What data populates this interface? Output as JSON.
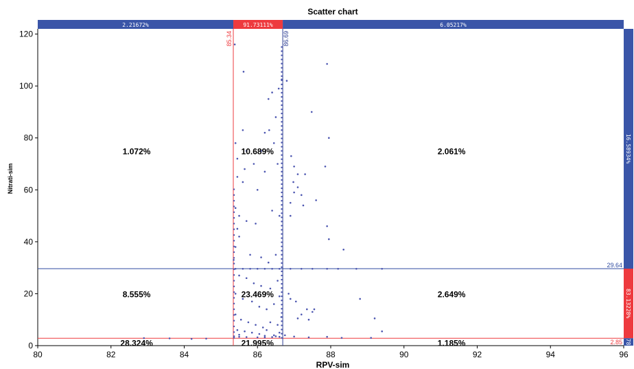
{
  "chart_data": {
    "type": "scatter",
    "title": "Scatter chart",
    "xlabel": "RPV-sim",
    "ylabel": "Nitrati-sim",
    "xlim": [
      80,
      96
    ],
    "ylim": [
      0,
      122
    ],
    "xticks": [
      "80",
      "82",
      "84",
      "86",
      "88",
      "90",
      "92",
      "94",
      "96"
    ],
    "yticks": [
      "0",
      "20",
      "40",
      "60",
      "80",
      "100",
      "120"
    ],
    "colors": {
      "points": "#4b55b0",
      "blue": "#3a55a8",
      "red": "#ee3a3e"
    },
    "thresholds": {
      "x_low": {
        "value": 85.34,
        "label": "85.34",
        "color": "#ee3a3e"
      },
      "x_high": {
        "value": 86.69,
        "label": "86.69",
        "color": "#2e3f93"
      },
      "y_high": {
        "value": 29.64,
        "label": "29.64",
        "color": "#2e4aa0"
      },
      "y_low": {
        "value": 2.85,
        "label": "2.85",
        "color": "#ee3a3e"
      }
    },
    "top_bar": [
      "2.21672%",
      "91.73111%",
      "6.05217%"
    ],
    "right_bar": [
      "16.58934%",
      "83.13228%",
      "78"
    ],
    "region_labels": [
      {
        "text": "1.072%",
        "x": 82.7,
        "y": 75
      },
      {
        "text": "10.689%",
        "x": 86.0,
        "y": 75
      },
      {
        "text": "2.061%",
        "x": 91.3,
        "y": 75
      },
      {
        "text": "8.555%",
        "x": 82.7,
        "y": 20
      },
      {
        "text": "23.469%",
        "x": 86.0,
        "y": 20
      },
      {
        "text": "2.649%",
        "x": 91.3,
        "y": 20
      },
      {
        "text": "28.324%",
        "x": 82.7,
        "y": 1.2
      },
      {
        "text": "21.995%",
        "x": 86.0,
        "y": 1.2
      },
      {
        "text": "1.185%",
        "x": 91.3,
        "y": 1.2
      }
    ],
    "points": [
      [
        85.38,
        116
      ],
      [
        85.62,
        105.5
      ],
      [
        86.4,
        97.5
      ],
      [
        87.9,
        108.5
      ],
      [
        86.58,
        99
      ],
      [
        86.3,
        95
      ],
      [
        86.66,
        102.5
      ],
      [
        86.8,
        102
      ],
      [
        87.48,
        90
      ],
      [
        86.5,
        88
      ],
      [
        86.32,
        83
      ],
      [
        85.6,
        83
      ],
      [
        86.2,
        82
      ],
      [
        86.45,
        78
      ],
      [
        86.1,
        75
      ],
      [
        87.95,
        80
      ],
      [
        85.4,
        78
      ],
      [
        85.7,
        75
      ],
      [
        85.45,
        72
      ],
      [
        85.65,
        68
      ],
      [
        85.9,
        70
      ],
      [
        86.2,
        67
      ],
      [
        85.45,
        65
      ],
      [
        85.6,
        63
      ],
      [
        86.0,
        60
      ],
      [
        86.55,
        70
      ],
      [
        86.92,
        73
      ],
      [
        87.0,
        69
      ],
      [
        87.1,
        66
      ],
      [
        87.3,
        66
      ],
      [
        87.85,
        69
      ],
      [
        86.98,
        63
      ],
      [
        87.1,
        61
      ],
      [
        87.0,
        59
      ],
      [
        87.2,
        58
      ],
      [
        86.9,
        55
      ],
      [
        87.6,
        56
      ],
      [
        87.25,
        54
      ],
      [
        85.4,
        53
      ],
      [
        85.5,
        50
      ],
      [
        85.7,
        48
      ],
      [
        85.95,
        47
      ],
      [
        86.4,
        52
      ],
      [
        86.6,
        50
      ],
      [
        86.9,
        50
      ],
      [
        87.9,
        46
      ],
      [
        87.95,
        41
      ],
      [
        88.35,
        37
      ],
      [
        85.45,
        45
      ],
      [
        85.5,
        42
      ],
      [
        85.4,
        38
      ],
      [
        85.8,
        35
      ],
      [
        86.1,
        34
      ],
      [
        86.3,
        32
      ],
      [
        86.5,
        35
      ],
      [
        85.35,
        33
      ],
      [
        86.0,
        29.6
      ],
      [
        86.2,
        29.6
      ],
      [
        86.9,
        29.6
      ],
      [
        87.5,
        29.6
      ],
      [
        88.2,
        29.6
      ],
      [
        88.7,
        29.6
      ],
      [
        89.4,
        29.6
      ],
      [
        85.4,
        29.6
      ],
      [
        85.6,
        29.6
      ],
      [
        85.8,
        29.6
      ],
      [
        86.4,
        29.6
      ],
      [
        86.6,
        29.6
      ],
      [
        87.2,
        29.6
      ],
      [
        87.9,
        29.6
      ],
      [
        85.5,
        27
      ],
      [
        85.7,
        26
      ],
      [
        85.9,
        24
      ],
      [
        86.1,
        23
      ],
      [
        86.35,
        22
      ],
      [
        86.55,
        25
      ],
      [
        85.4,
        20
      ],
      [
        85.6,
        18
      ],
      [
        85.85,
        17
      ],
      [
        86.05,
        15
      ],
      [
        86.25,
        14
      ],
      [
        86.45,
        16
      ],
      [
        86.6,
        19
      ],
      [
        86.85,
        20
      ],
      [
        86.9,
        18
      ],
      [
        87.05,
        17
      ],
      [
        87.35,
        14
      ],
      [
        87.2,
        12
      ],
      [
        87.1,
        10.5
      ],
      [
        87.55,
        14
      ],
      [
        87.5,
        13
      ],
      [
        87.4,
        10
      ],
      [
        88.8,
        18
      ],
      [
        89.2,
        10.5
      ],
      [
        89.4,
        5.5
      ],
      [
        85.4,
        12
      ],
      [
        85.55,
        10
      ],
      [
        85.75,
        9
      ],
      [
        85.95,
        8
      ],
      [
        86.15,
        7
      ],
      [
        86.35,
        9
      ],
      [
        86.55,
        8
      ],
      [
        86.65,
        11
      ],
      [
        85.45,
        6
      ],
      [
        85.65,
        5.5
      ],
      [
        85.85,
        5
      ],
      [
        86.05,
        4.5
      ],
      [
        86.25,
        6
      ],
      [
        86.45,
        4
      ],
      [
        86.6,
        5
      ],
      [
        86.75,
        4
      ],
      [
        87.0,
        3.5
      ],
      [
        87.4,
        3.2
      ],
      [
        87.9,
        3.4
      ],
      [
        88.3,
        3
      ],
      [
        89.1,
        3
      ],
      [
        85.5,
        3.4
      ],
      [
        85.7,
        3.3
      ],
      [
        86.0,
        3.2
      ],
      [
        86.2,
        3.2
      ],
      [
        86.4,
        3.3
      ],
      [
        86.6,
        3.4
      ],
      [
        84.2,
        2.6
      ],
      [
        83.6,
        2.8
      ],
      [
        84.6,
        2.7
      ],
      [
        82.9,
        2.9
      ],
      [
        85.36,
        3.6
      ],
      [
        85.5,
        4.2
      ],
      [
        86.2,
        3.8
      ],
      [
        86.5,
        3.6
      ]
    ]
  }
}
